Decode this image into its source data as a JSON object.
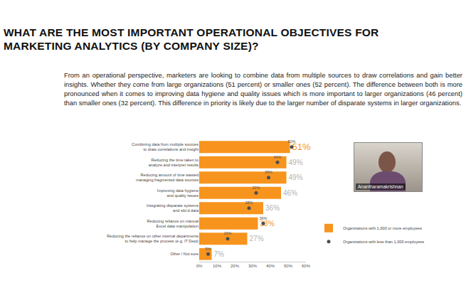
{
  "chart_data": {
    "type": "bar",
    "orientation": "horizontal",
    "title": "WHAT ARE THE MOST IMPORTANT OPERATIONAL OBJECTIVES  FOR\nMARKETING ANALYTICS  (BY COMPANY SIZE)?",
    "subtitle": "From an operational perspective, marketers are looking to combine data from multiple sources to draw correlations and gain better insights. Whether they come from large organizations (51 percent) or smaller ones (52 percent). The difference between both is more pronounced when it comes to improving data hygiene and quality issues which is more important to larger organizations (46 percent) than smaller ones (32 percent). This difference in priority is likely due to the larger number of disparate systems in larger organizations.",
    "categories": [
      "Combining data from multiple sources\nto draw correlations and insight",
      "Reducing the time taken to\nanalyze and interpret results",
      "Reducing amount of time wasted\nmanaging fragmented data sources",
      "Improving data hygiene\nand quality issues",
      "Integrating disparate systems\nand silo'd data",
      "Reducing reliance on manual\nExcel data manipulation",
      "Reducing the reliance on other internal departments\nto help manage the process (e.g. IT Dept)",
      "Other / Not sure"
    ],
    "series": [
      {
        "name": "Organizations with 1,000 or more employees",
        "type": "bar",
        "color": "#f7941d",
        "values": [
          51,
          49,
          49,
          46,
          36,
          33,
          27,
          7
        ],
        "value_labels": [
          "51%",
          "49%",
          "49%",
          "46%",
          "36%",
          "33%",
          "27%",
          "7%"
        ]
      },
      {
        "name": "Organizations with less than 1,000 employees",
        "type": "scatter",
        "marker": "circle",
        "color": "#4d4d4d",
        "values": [
          52,
          44,
          39,
          32,
          28,
          36,
          16,
          5
        ],
        "value_labels": [
          "52%",
          "44%",
          "39%",
          "32%",
          "28%",
          "36%",
          "16%",
          "5%"
        ]
      }
    ],
    "xlim": [
      0,
      60
    ],
    "xticks": [
      {
        "value": 0,
        "label": "0%"
      },
      {
        "value": 10,
        "label": "10%"
      },
      {
        "value": 20,
        "label": "20%"
      },
      {
        "value": 30,
        "label": "30%"
      },
      {
        "value": 40,
        "label": "40%"
      },
      {
        "value": 50,
        "label": "50%"
      },
      {
        "value": 60,
        "label": "60%"
      }
    ],
    "grid": false,
    "legend": "lower right",
    "data_labels": true
  },
  "video_call": {
    "name": "Anantharamakrishnan"
  }
}
